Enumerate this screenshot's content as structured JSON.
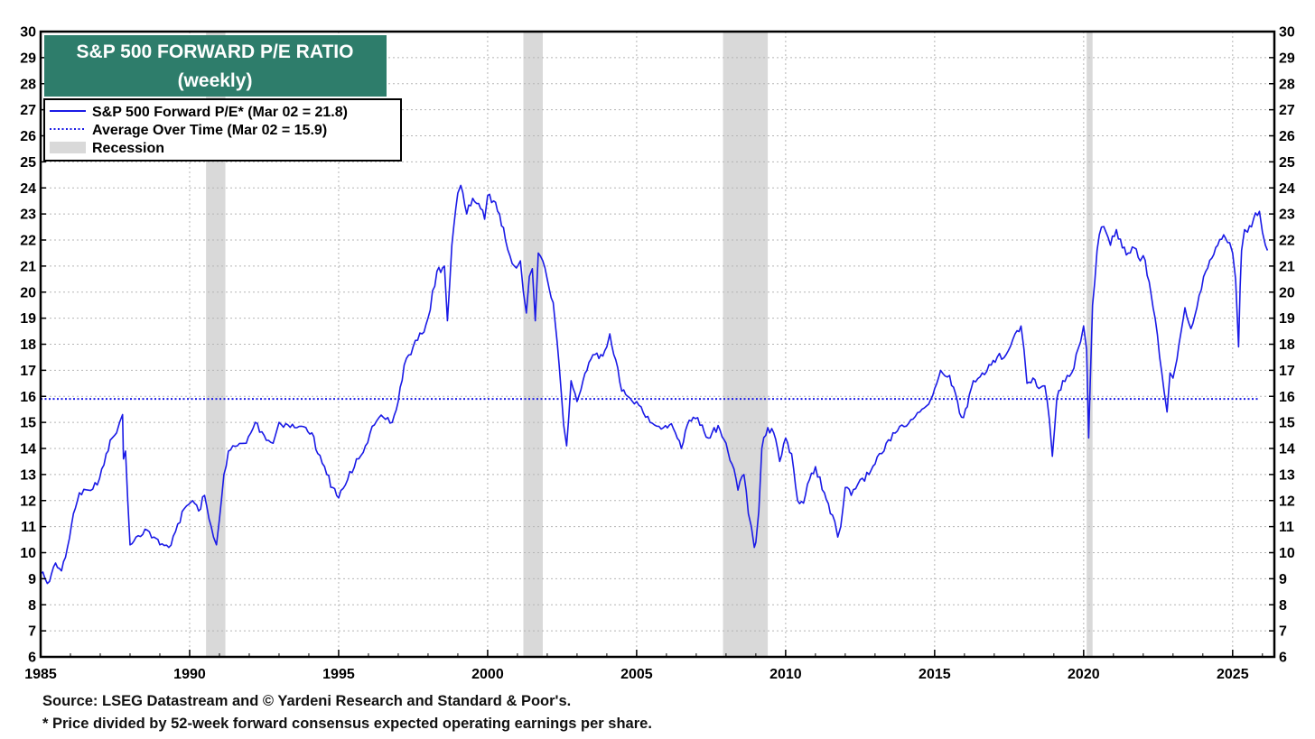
{
  "chart_data": {
    "type": "line",
    "title": "S&P 500 FORWARD P/E RATIO",
    "subtitle": "(weekly)",
    "xlabel": "",
    "ylabel": "",
    "xlim": [
      1985,
      2026.4
    ],
    "ylim": [
      6,
      30
    ],
    "x_ticks": [
      "1985",
      "1990",
      "1995",
      "2000",
      "2005",
      "2010",
      "2015",
      "2020",
      "2025"
    ],
    "y_ticks": [
      "6",
      "7",
      "8",
      "9",
      "10",
      "11",
      "12",
      "13",
      "14",
      "15",
      "16",
      "17",
      "18",
      "19",
      "20",
      "21",
      "22",
      "23",
      "24",
      "25",
      "26",
      "27",
      "28",
      "29",
      "30"
    ],
    "grid": true,
    "legend_position": "top-left",
    "series": [
      {
        "name": "S&P 500 Forward P/E* (Mar 02 = 21.8)",
        "color": "#1a1ae6",
        "style": "solid",
        "x": [
          1985.0,
          1985.15,
          1985.3,
          1985.5,
          1985.7,
          1985.9,
          1986.1,
          1986.3,
          1986.6,
          1986.9,
          1987.2,
          1987.4,
          1987.55,
          1987.65,
          1987.75,
          1987.78,
          1987.85,
          1988.0,
          1988.2,
          1988.5,
          1988.8,
          1989.0,
          1989.3,
          1989.6,
          1989.9,
          1990.1,
          1990.3,
          1990.5,
          1990.65,
          1990.8,
          1990.9,
          1991.0,
          1991.15,
          1991.3,
          1991.6,
          1991.9,
          1992.2,
          1992.5,
          1992.8,
          1993.0,
          1993.3,
          1993.6,
          1993.9,
          1994.1,
          1994.3,
          1994.6,
          1994.8,
          1995.0,
          1995.3,
          1995.6,
          1995.9,
          1996.2,
          1996.5,
          1996.8,
          1997.0,
          1997.2,
          1997.5,
          1997.8,
          1998.0,
          1998.3,
          1998.55,
          1998.65,
          1998.8,
          1999.0,
          1999.1,
          1999.3,
          1999.5,
          1999.7,
          1999.9,
          2000.0,
          2000.2,
          2000.4,
          2000.6,
          2000.9,
          2001.1,
          2001.2,
          2001.3,
          2001.4,
          2001.5,
          2001.6,
          2001.7,
          2001.85,
          2002.0,
          2002.2,
          2002.4,
          2002.55,
          2002.65,
          2002.8,
          2003.0,
          2003.2,
          2003.4,
          2003.6,
          2003.8,
          2004.0,
          2004.1,
          2004.3,
          2004.5,
          2004.7,
          2005.0,
          2005.3,
          2005.6,
          2005.9,
          2006.1,
          2006.3,
          2006.5,
          2006.7,
          2006.9,
          2007.2,
          2007.4,
          2007.6,
          2007.8,
          2008.0,
          2008.2,
          2008.4,
          2008.6,
          2008.75,
          2008.85,
          2008.95,
          2009.0,
          2009.1,
          2009.2,
          2009.4,
          2009.6,
          2009.8,
          2010.0,
          2010.2,
          2010.4,
          2010.6,
          2010.8,
          2011.0,
          2011.3,
          2011.5,
          2011.65,
          2011.75,
          2011.85,
          2012.0,
          2012.2,
          2012.5,
          2012.8,
          2013.0,
          2013.3,
          2013.6,
          2013.9,
          2014.2,
          2014.5,
          2014.8,
          2015.0,
          2015.2,
          2015.5,
          2015.7,
          2015.9,
          2016.1,
          2016.3,
          2016.6,
          2016.9,
          2017.1,
          2017.4,
          2017.7,
          2017.9,
          2018.0,
          2018.1,
          2018.3,
          2018.5,
          2018.7,
          2018.85,
          2018.95,
          2019.1,
          2019.3,
          2019.6,
          2019.9,
          2020.0,
          2020.1,
          2020.17,
          2020.22,
          2020.3,
          2020.45,
          2020.6,
          2020.75,
          2020.9,
          2021.1,
          2021.3,
          2021.5,
          2021.7,
          2021.9,
          2022.0,
          2022.2,
          2022.4,
          2022.55,
          2022.7,
          2022.8,
          2022.9,
          2023.0,
          2023.2,
          2023.4,
          2023.6,
          2023.8,
          2023.95,
          2024.1,
          2024.3,
          2024.5,
          2024.7,
          2024.9,
          2025.0,
          2025.1,
          2025.2,
          2025.25,
          2025.3,
          2025.4,
          2025.5,
          2025.7,
          2025.9,
          2026.0,
          2026.1,
          2026.17
        ],
        "y": [
          9.2,
          9.0,
          8.9,
          9.6,
          9.3,
          10.2,
          11.5,
          12.3,
          12.4,
          12.6,
          13.8,
          14.4,
          14.6,
          15.0,
          15.3,
          13.6,
          13.9,
          10.3,
          10.6,
          10.9,
          10.6,
          10.3,
          10.2,
          11.1,
          11.8,
          12.0,
          11.6,
          12.2,
          11.3,
          10.6,
          10.3,
          11.3,
          13.0,
          13.9,
          14.1,
          14.2,
          15.0,
          14.5,
          14.2,
          15.0,
          14.9,
          14.8,
          14.8,
          14.6,
          13.8,
          13.0,
          12.5,
          12.1,
          12.8,
          13.6,
          14.1,
          14.9,
          15.2,
          15.0,
          15.8,
          17.2,
          17.9,
          18.4,
          19.0,
          20.8,
          21.0,
          18.9,
          21.8,
          23.8,
          24.1,
          23.0,
          23.6,
          23.4,
          22.8,
          23.7,
          23.5,
          23.0,
          22.0,
          21.0,
          21.2,
          20.0,
          19.2,
          20.6,
          20.9,
          18.9,
          21.5,
          21.2,
          20.5,
          19.6,
          17.2,
          14.9,
          14.1,
          16.6,
          15.8,
          16.6,
          17.3,
          17.6,
          17.6,
          17.9,
          18.4,
          17.4,
          16.2,
          16.0,
          15.8,
          15.2,
          14.9,
          14.8,
          14.9,
          14.6,
          14.0,
          14.9,
          15.2,
          14.9,
          14.4,
          14.8,
          14.7,
          14.2,
          13.4,
          12.4,
          13.0,
          11.5,
          11.0,
          10.2,
          10.4,
          11.6,
          14.0,
          14.8,
          14.6,
          13.5,
          14.4,
          13.8,
          12.0,
          11.9,
          12.8,
          13.3,
          12.3,
          11.5,
          11.2,
          10.6,
          11.0,
          12.5,
          12.2,
          12.8,
          13.0,
          13.4,
          13.9,
          14.6,
          14.9,
          15.1,
          15.4,
          15.7,
          16.3,
          17.0,
          16.8,
          16.1,
          15.2,
          15.6,
          16.6,
          16.9,
          17.2,
          17.5,
          17.6,
          18.4,
          18.7,
          17.8,
          16.5,
          16.7,
          16.3,
          16.4,
          15.1,
          13.7,
          15.9,
          16.6,
          16.9,
          18.1,
          18.7,
          17.8,
          14.4,
          16.5,
          19.5,
          21.6,
          22.5,
          22.3,
          21.8,
          22.4,
          21.7,
          21.5,
          21.7,
          21.2,
          21.4,
          20.4,
          19.0,
          17.5,
          16.2,
          15.4,
          16.9,
          16.7,
          18.0,
          19.4,
          18.6,
          19.4,
          20.1,
          20.8,
          21.3,
          21.8,
          22.2,
          21.9,
          21.5,
          20.5,
          17.9,
          20.2,
          21.6,
          22.4,
          22.3,
          22.8,
          23.1,
          22.3,
          21.8,
          21.6
        ]
      },
      {
        "name": "Average Over Time (Mar 02 = 15.9)",
        "color": "#1a1ae6",
        "style": "dotted",
        "value": 15.9
      }
    ],
    "recessions": {
      "name": "Recession",
      "color": "#d9d9d9",
      "periods": [
        [
          1990.55,
          1991.2
        ],
        [
          2001.2,
          2001.85
        ],
        [
          2007.9,
          2009.4
        ],
        [
          2020.1,
          2020.3
        ]
      ]
    }
  },
  "notes": {
    "source": "Source: LSEG Datastream and © Yardeni Research and Standard & Poor's.",
    "definition": "* Price divided by 52-week forward consensus expected operating earnings per share."
  },
  "colors": {
    "title_box": "#2e7d6b",
    "title_text": "#ffffff",
    "line": "#1a1ae6",
    "recession": "#d9d9d9",
    "grid": "#b5b5b5",
    "axis": "#000000"
  }
}
